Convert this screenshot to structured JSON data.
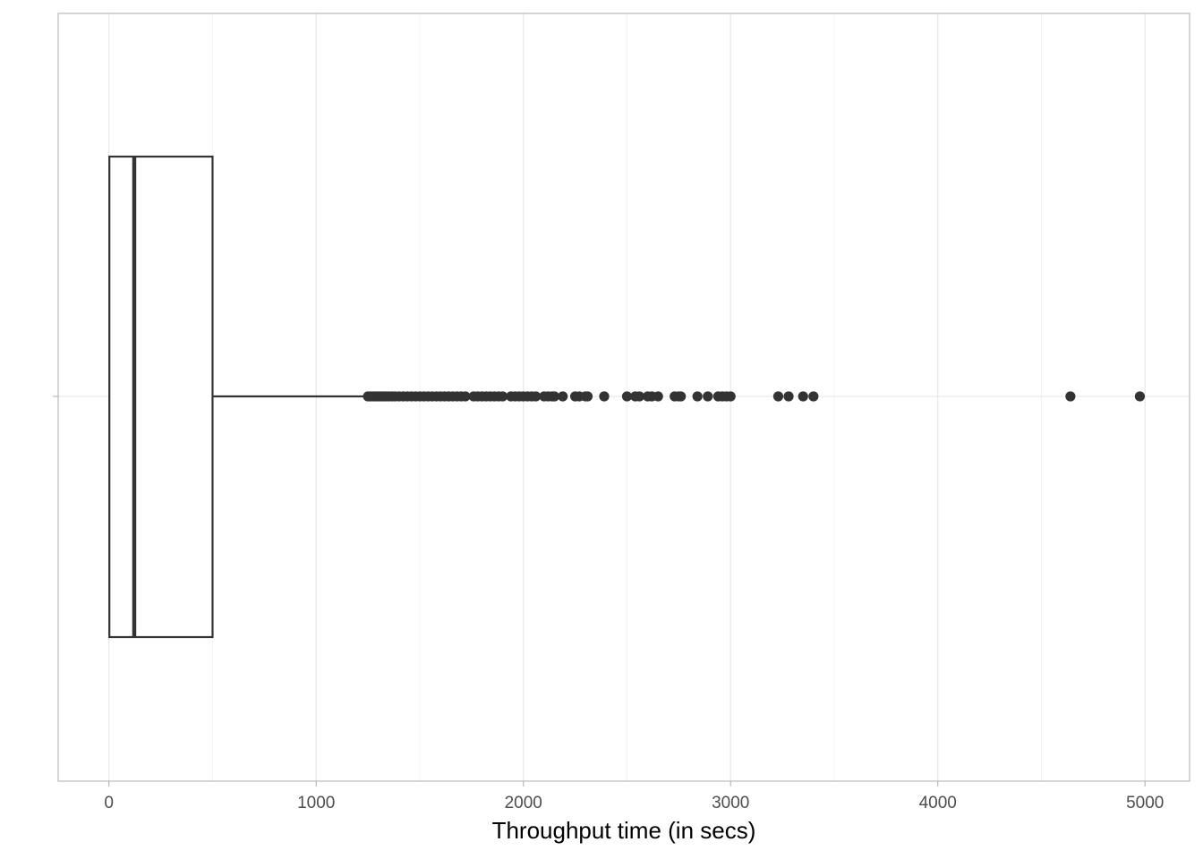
{
  "chart_data": {
    "type": "boxplot",
    "orientation": "horizontal",
    "title": "",
    "xlabel": "Throughput time (in secs)",
    "ylabel": "",
    "xlim": [
      -245,
      5215
    ],
    "x_ticks": [
      0,
      1000,
      2000,
      3000,
      4000,
      5000
    ],
    "x_tick_labels": [
      "0",
      "1000",
      "2000",
      "3000",
      "4000",
      "5000"
    ],
    "grid": "on",
    "box": {
      "q1": 2,
      "median": 122,
      "q3": 500,
      "whisker_low": 2,
      "whisker_high": 1240
    },
    "outliers": [
      1250,
      1262,
      1275,
      1288,
      1300,
      1312,
      1325,
      1338,
      1350,
      1365,
      1380,
      1400,
      1420,
      1440,
      1460,
      1480,
      1500,
      1520,
      1540,
      1560,
      1580,
      1600,
      1620,
      1640,
      1660,
      1680,
      1700,
      1720,
      1760,
      1780,
      1800,
      1820,
      1840,
      1860,
      1880,
      1900,
      1940,
      1960,
      1980,
      2000,
      2020,
      2040,
      2060,
      2100,
      2120,
      2140,
      2150,
      2190,
      2250,
      2270,
      2300,
      2310,
      2390,
      2500,
      2540,
      2560,
      2600,
      2620,
      2650,
      2730,
      2750,
      2760,
      2840,
      2890,
      2940,
      2960,
      2980,
      3000,
      3230,
      3280,
      3350,
      3400,
      4640,
      4975
    ],
    "colors": {
      "box_stroke": "#333333",
      "grid": "#e5e5e5",
      "panel_border": "#b3b3b3",
      "point": "#333333"
    }
  }
}
